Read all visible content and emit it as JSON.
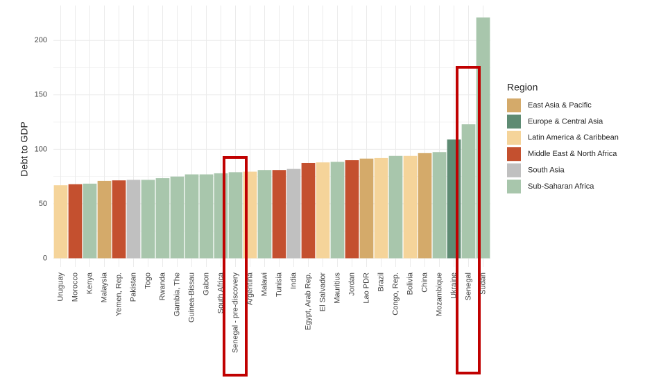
{
  "chart_data": {
    "type": "bar",
    "y_label": "Debt to GDP",
    "categories": [
      "Uruguay",
      "Morocco",
      "Kenya",
      "Malaysia",
      "Yemen, Rep.",
      "Pakistan",
      "Togo",
      "Rwanda",
      "Gambia, The",
      "Guinea-Bissau",
      "Gabon",
      "South Africa",
      "Senegal - pre-discovery",
      "Argentina",
      "Malawi",
      "Tunisia",
      "India",
      "Egypt, Arab Rep.",
      "El Salvador",
      "Mauritius",
      "Jordan",
      "Lao PDR",
      "Brazil",
      "Congo, Rep.",
      "Bolivia",
      "China",
      "Mozambique",
      "Ukraine",
      "Senegal",
      "Sudan"
    ],
    "legend_title": "Region",
    "series": [
      {
        "name": "East Asia & Pacific",
        "color": "#d4aa6a",
        "values": [
          null,
          null,
          null,
          71,
          null,
          null,
          null,
          null,
          null,
          null,
          null,
          null,
          null,
          null,
          null,
          null,
          null,
          null,
          null,
          null,
          null,
          91.5,
          null,
          null,
          null,
          96.5,
          null,
          null,
          null,
          null
        ]
      },
      {
        "name": "Europe & Central Asia",
        "color": "#5e8b73",
        "values": [
          null,
          null,
          null,
          null,
          null,
          null,
          null,
          null,
          null,
          null,
          null,
          null,
          null,
          null,
          null,
          null,
          null,
          null,
          null,
          null,
          null,
          null,
          null,
          null,
          null,
          null,
          null,
          109,
          null,
          null
        ]
      },
      {
        "name": "Latin America & Caribbean",
        "color": "#f5d49a",
        "values": [
          67,
          null,
          null,
          null,
          null,
          null,
          null,
          null,
          null,
          null,
          null,
          null,
          null,
          79.5,
          null,
          null,
          null,
          null,
          88,
          null,
          null,
          null,
          92,
          null,
          94,
          null,
          null,
          null,
          null,
          null
        ]
      },
      {
        "name": "Middle East & North Africa",
        "color": "#c4502f",
        "values": [
          null,
          68,
          null,
          null,
          71.5,
          null,
          null,
          null,
          null,
          null,
          null,
          null,
          null,
          null,
          null,
          81,
          null,
          87.5,
          null,
          null,
          90,
          null,
          null,
          null,
          null,
          null,
          null,
          null,
          null,
          null
        ]
      },
      {
        "name": "South Asia",
        "color": "#c0c0c0",
        "values": [
          null,
          null,
          null,
          null,
          null,
          72,
          null,
          null,
          null,
          null,
          null,
          null,
          null,
          null,
          null,
          null,
          82,
          null,
          null,
          null,
          null,
          null,
          null,
          null,
          null,
          null,
          null,
          null,
          null,
          null
        ]
      },
      {
        "name": "Sub-Saharan Africa",
        "color": "#a8c6ac",
        "values": [
          null,
          null,
          68.5,
          null,
          null,
          null,
          72,
          73.5,
          75,
          77,
          77,
          78,
          79,
          null,
          81,
          null,
          null,
          null,
          null,
          88.5,
          null,
          null,
          null,
          94,
          null,
          null,
          97.5,
          null,
          123,
          221
        ]
      }
    ],
    "ylim": [
      -8,
      232
    ],
    "yticks": [
      0,
      50,
      100,
      150,
      200
    ],
    "grid": true
  }
}
